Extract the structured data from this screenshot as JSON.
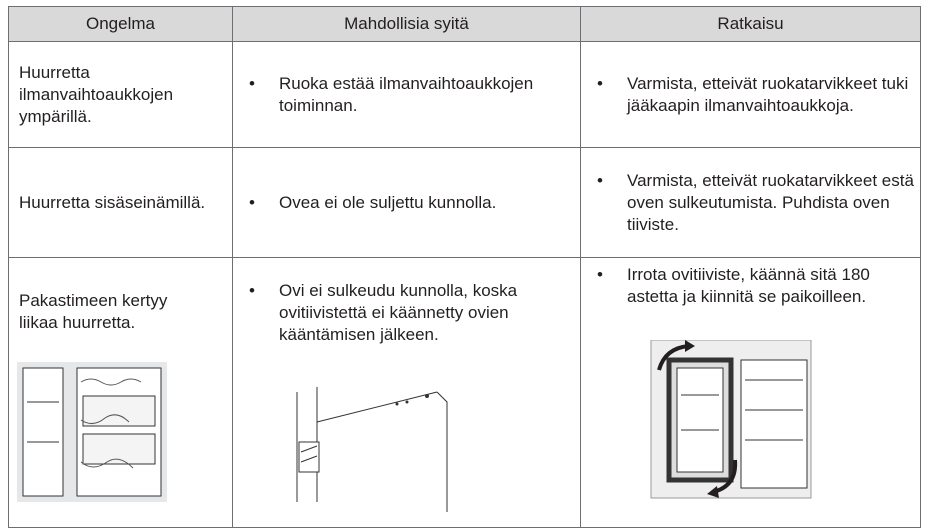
{
  "table": {
    "header": [
      "Ongelma",
      "Mahdollisia syitä",
      "Ratkaisu"
    ],
    "rows": [
      [
        "Huurretta ilmanvaihtoaukkojen ympärillä.",
        "Ruoka estää ilmanvaihtoaukkojen toiminnan.",
        "Varmista, etteivät ruokatarvikkeet tuki jääkaapin ilmanvaihtoaukkoja."
      ],
      [
        "Huurretta sisäseinämillä.",
        "Ovea ei ole suljettu kunnolla.",
        "Varmista, etteivät ruokatarvikkeet estä oven sulkeutumista. Puhdista oven tiiviste."
      ],
      [
        "Pakastimeen kertyy liikaa huurretta.",
        "Ovi ei sulkeudu kunnolla, koska ovitiivistettä ei käännetty ovien kääntämisen jälkeen.",
        "Irrota ovitiiviste, käännä sitä 180 astetta ja kiinnitä se paikoilleen."
      ]
    ]
  }
}
